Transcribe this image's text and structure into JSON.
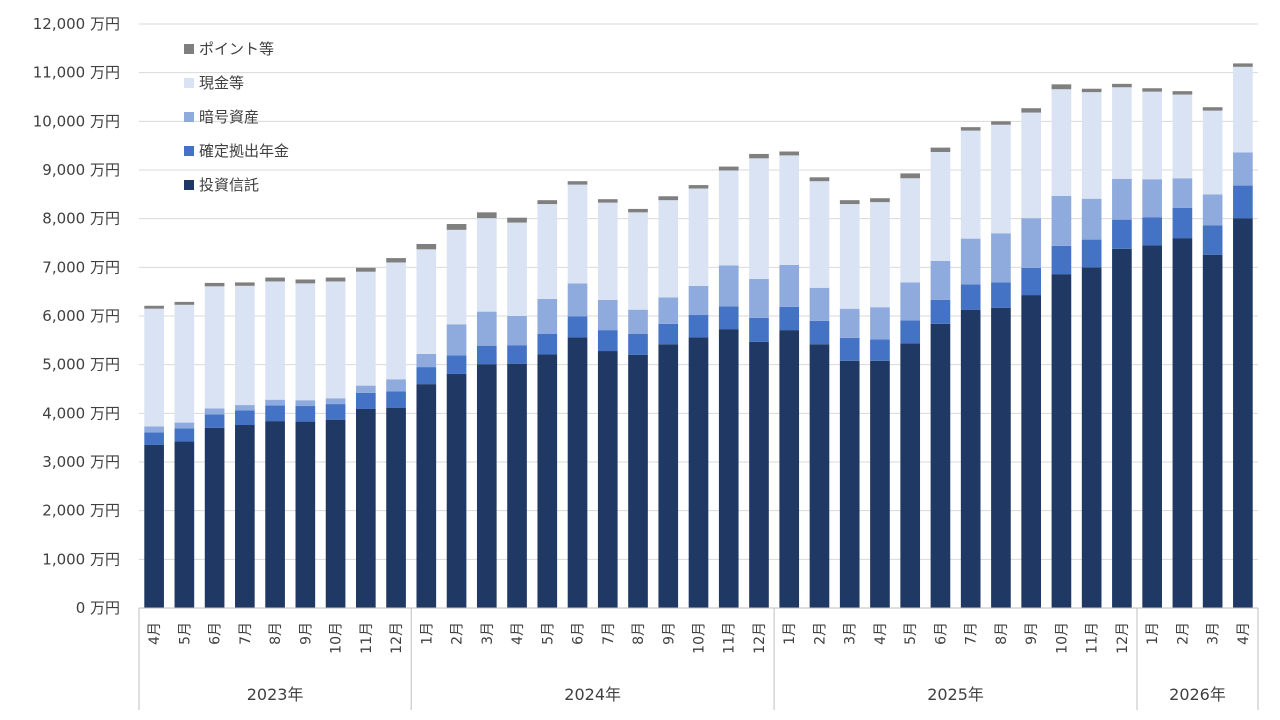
{
  "chart_data": {
    "type": "bar",
    "stacked": true,
    "y_unit": "万円",
    "ylim": [
      0,
      12000
    ],
    "yticks": [
      0,
      1000,
      2000,
      3000,
      4000,
      5000,
      6000,
      7000,
      8000,
      9000,
      10000,
      11000,
      12000
    ],
    "ytick_labels": [
      "0 万円",
      "1,000 万円",
      "2,000 万円",
      "3,000 万円",
      "4,000 万円",
      "5,000 万円",
      "6,000 万円",
      "7,000 万円",
      "8,000 万円",
      "9,000 万円",
      "10,000 万円",
      "11,000 万円",
      "12,000 万円"
    ],
    "grid": true,
    "legend_position": "top-left",
    "categories": [
      "4月",
      "5月",
      "6月",
      "7月",
      "8月",
      "9月",
      "10月",
      "11月",
      "12月",
      "1月",
      "2月",
      "3月",
      "4月",
      "5月",
      "6月",
      "7月",
      "8月",
      "9月",
      "10月",
      "11月",
      "12月",
      "1月",
      "2月",
      "3月",
      "4月",
      "5月",
      "6月",
      "7月",
      "8月",
      "9月",
      "10月",
      "11月",
      "12月",
      "1月",
      "2月",
      "3月",
      "4月"
    ],
    "year_groups": [
      {
        "label": "2023年",
        "count": 9
      },
      {
        "label": "2024年",
        "count": 12
      },
      {
        "label": "2025年",
        "count": 12
      },
      {
        "label": "2026年",
        "count": 4
      }
    ],
    "series": [
      {
        "name": "投資信託",
        "color": "#203864",
        "values": [
          3350,
          3420,
          3700,
          3760,
          3840,
          3830,
          3870,
          4090,
          4110,
          4600,
          4810,
          5010,
          5020,
          5210,
          5560,
          5280,
          5200,
          5420,
          5560,
          5730,
          5470,
          5710,
          5420,
          5080,
          5080,
          5440,
          5840,
          6130,
          6170,
          6430,
          6860,
          7000,
          7380,
          7450,
          7600,
          7260,
          8010
        ]
      },
      {
        "name": "確定拠出年金",
        "color": "#4472c4",
        "values": [
          260,
          270,
          280,
          300,
          320,
          320,
          320,
          330,
          340,
          350,
          380,
          380,
          380,
          420,
          430,
          430,
          430,
          420,
          460,
          470,
          490,
          480,
          480,
          470,
          440,
          470,
          490,
          520,
          520,
          560,
          580,
          570,
          600,
          580,
          620,
          600,
          670
        ]
      },
      {
        "name": "暗号資産",
        "color": "#8faadc",
        "values": [
          120,
          120,
          120,
          110,
          120,
          120,
          120,
          150,
          250,
          270,
          640,
          700,
          600,
          720,
          680,
          620,
          500,
          540,
          600,
          840,
          800,
          860,
          680,
          600,
          660,
          780,
          800,
          940,
          1010,
          1020,
          1030,
          840,
          840,
          780,
          610,
          640,
          680
        ]
      },
      {
        "name": "現金等",
        "color": "#dae3f3",
        "values": [
          2420,
          2420,
          2510,
          2450,
          2430,
          2400,
          2400,
          2340,
          2400,
          2150,
          1940,
          1920,
          1920,
          1950,
          2030,
          2000,
          2000,
          2000,
          2000,
          1950,
          2480,
          2250,
          2190,
          2150,
          2160,
          2140,
          2240,
          2220,
          2230,
          2170,
          2190,
          2190,
          1880,
          1800,
          1720,
          1720,
          1760
        ]
      },
      {
        "name": "ポイント等",
        "color": "#7f7f7f",
        "values": [
          60,
          60,
          70,
          70,
          80,
          80,
          80,
          80,
          90,
          110,
          120,
          120,
          100,
          80,
          70,
          70,
          70,
          80,
          70,
          80,
          90,
          80,
          80,
          80,
          80,
          100,
          90,
          70,
          70,
          90,
          100,
          70,
          70,
          70,
          70,
          70,
          70
        ]
      }
    ]
  }
}
